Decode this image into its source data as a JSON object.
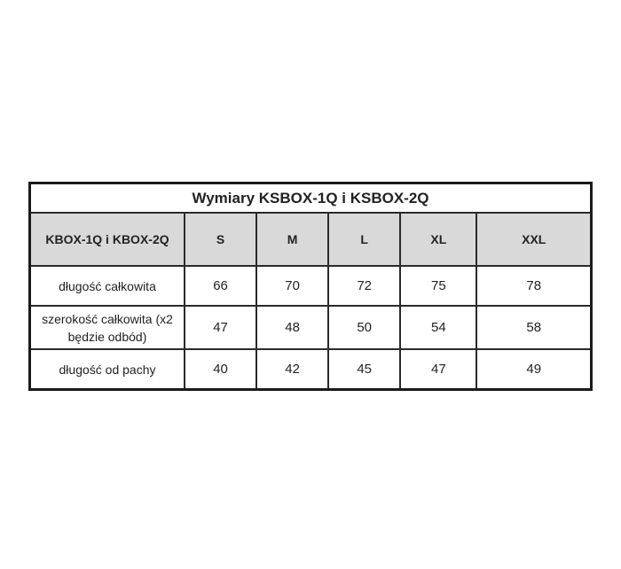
{
  "title": "Wymiary KSBOX-1Q i KSBOX-2Q",
  "header": {
    "label": "KBOX-1Q i KBOX-2Q",
    "sizes": [
      "S",
      "M",
      "L",
      "XL",
      "XXL"
    ]
  },
  "rows": [
    {
      "label": "długość całkowita",
      "values": [
        "66",
        "70",
        "72",
        "75",
        "78"
      ]
    },
    {
      "label": "szerokość całkowita (x2 będzie odbód)",
      "values": [
        "47",
        "48",
        "50",
        "54",
        "58"
      ]
    },
    {
      "label": "długość od pachy",
      "values": [
        "40",
        "42",
        "45",
        "47",
        "49"
      ]
    }
  ],
  "colors": {
    "header_bg": "#d9d9d9",
    "border": "#1a1a1a"
  }
}
